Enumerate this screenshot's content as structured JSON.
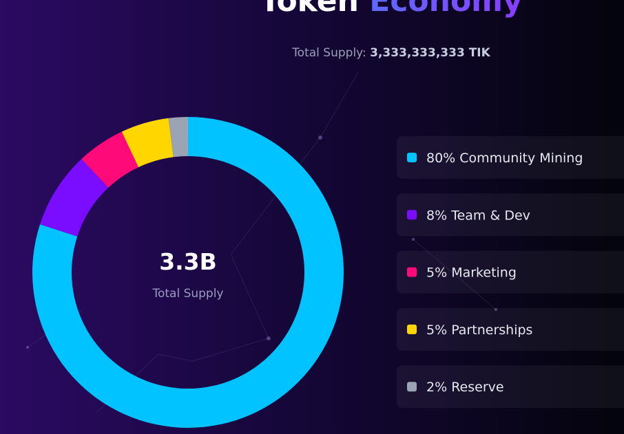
{
  "chart_data": {
    "type": "donut",
    "title": "Token",
    "title_highlight": "Economy",
    "subtitle_label": "Total Supply:",
    "subtitle_value": "3,333,333,333 TIK",
    "center_value": "3.3B",
    "center_label": "Total Supply",
    "categories": [
      "Community Mining",
      "Team & Dev",
      "Marketing",
      "Partnerships",
      "Reserve"
    ],
    "values": [
      80,
      8,
      5,
      5,
      2
    ],
    "value_labels": [
      "80%",
      "8%",
      "5%",
      "5%",
      "2%"
    ],
    "colors": [
      "#00c3ff",
      "#7a0cff",
      "#ff0a78",
      "#ffd600",
      "#9aa4b5"
    ]
  }
}
